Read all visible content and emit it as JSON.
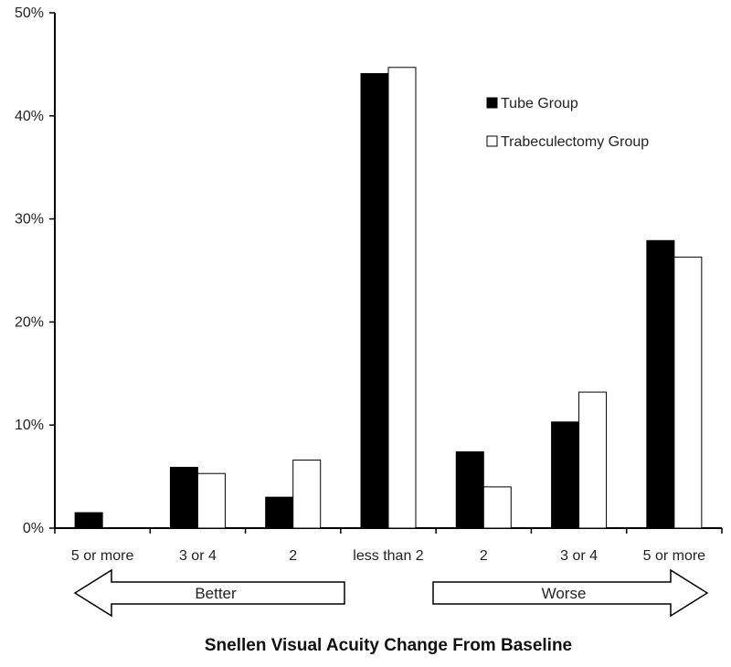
{
  "chart_data": {
    "type": "bar",
    "categories": [
      "5 or more",
      "3 or 4",
      "2",
      "less than 2",
      "2",
      "3 or 4",
      "5 or more"
    ],
    "series": [
      {
        "name": "Tube Group",
        "color": "#000000",
        "values": [
          1.5,
          5.9,
          3.0,
          44.1,
          7.4,
          10.3,
          27.9
        ]
      },
      {
        "name": "Trabeculectomy Group",
        "color": "#ffffff",
        "values": [
          0,
          5.3,
          6.6,
          44.7,
          4.0,
          13.2,
          26.3
        ]
      }
    ],
    "ylim": [
      0,
      50
    ],
    "yticks": [
      "0%",
      "10%",
      "20%",
      "30%",
      "40%",
      "50%"
    ],
    "ytick_values": [
      0,
      10,
      20,
      30,
      40,
      50
    ],
    "xlabel": "Snellen Visual Acuity Change From Baseline",
    "direction_labels": {
      "left": "Better",
      "right": "Worse"
    },
    "legend_position": "top-right",
    "grid": false
  }
}
